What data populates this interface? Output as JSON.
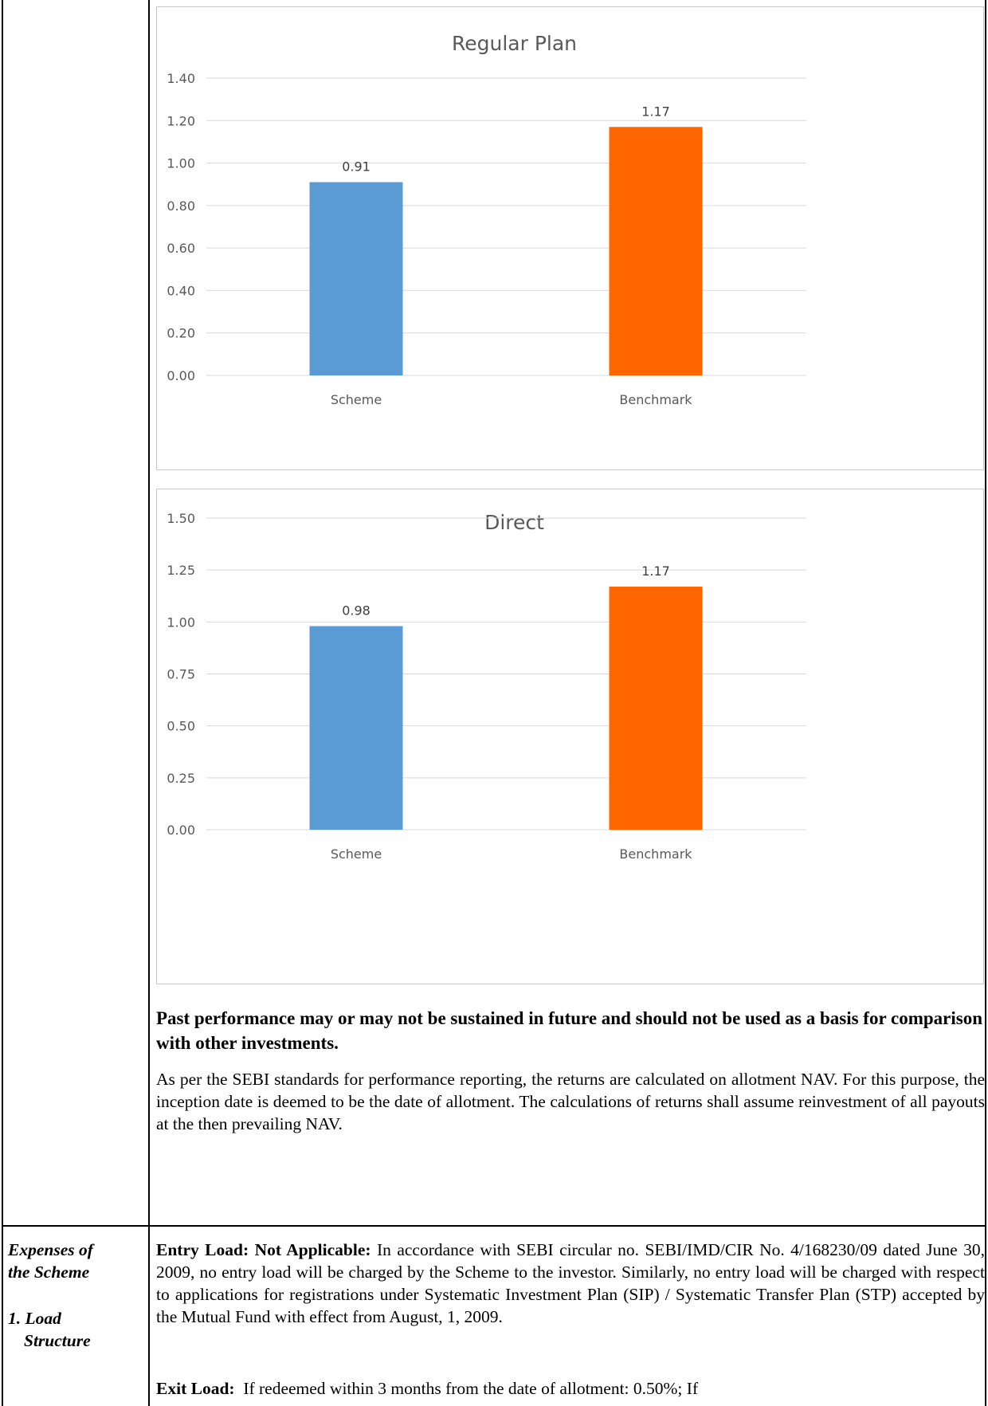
{
  "charts_meta": {
    "bar_colors": [
      "#5b9bd5",
      "#ff6600"
    ]
  },
  "chart_data": [
    {
      "type": "bar",
      "title": "Regular Plan",
      "categories": [
        "Scheme",
        "Benchmark"
      ],
      "values": [
        0.91,
        1.17
      ],
      "data_labels": [
        "0.91",
        "1.17"
      ],
      "ylim": [
        0,
        1.4
      ],
      "yticks": [
        "0.00",
        "0.20",
        "0.40",
        "0.60",
        "0.80",
        "1.00",
        "1.20",
        "1.40"
      ],
      "xlabel": "",
      "ylabel": "",
      "grid": true
    },
    {
      "type": "bar",
      "title": "Direct",
      "categories": [
        "Scheme",
        "Benchmark"
      ],
      "values": [
        0.98,
        1.17
      ],
      "data_labels": [
        "0.98",
        "1.17"
      ],
      "ylim": [
        0,
        1.5
      ],
      "yticks": [
        "0.00",
        "0.25",
        "0.50",
        "0.75",
        "1.00",
        "1.25",
        "1.50"
      ],
      "xlabel": "",
      "ylabel": "",
      "grid": true
    }
  ],
  "disclaimer": "Past performance may or may not be sustained in future and should not be used as a basis for comparison with other investments.",
  "sebi_note": "As per the SEBI standards for performance reporting, the returns are calculated on allotment NAV. For this purpose, the inception date is deemed to be the date of allotment. The calculations of returns shall assume reinvestment of all payouts at the then prevailing NAV.",
  "expenses": {
    "heading_line1": "Expenses of",
    "heading_line2": "the Scheme",
    "sub_line1": "1. Load",
    "sub_line2": "Structure"
  },
  "entry_load": {
    "label": "Entry Load: Not Applicable:",
    "text": " In accordance with SEBI circular no. SEBI/IMD/CIR No. 4/168230/09 dated June 30, 2009, no entry load will be charged by the Scheme to the investor. Similarly, no entry load will be charged with respect to applications for registrations under Systematic Investment Plan (SIP) / Systematic Transfer Plan (STP) accepted by the Mutual Fund with effect from August, 1, 2009."
  },
  "exit_load": {
    "label": "Exit Load:",
    "text": "  If redeemed within 3 months from the date of allotment: 0.50%; If"
  }
}
